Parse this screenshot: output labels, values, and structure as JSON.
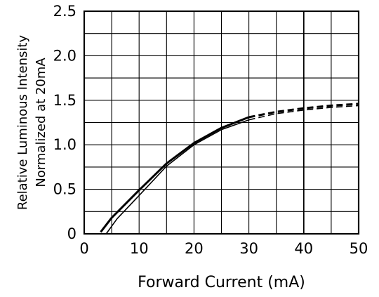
{
  "chart_data": {
    "type": "line",
    "xlabel": "Forward Current (mA)",
    "ylabel": [
      "Relative Luminous Intensity",
      "Normalized at 20mA"
    ],
    "xlim": [
      0,
      50
    ],
    "ylim": [
      0,
      2.5
    ],
    "x_ticks": [
      0,
      10,
      20,
      30,
      40,
      50
    ],
    "y_ticks": [
      0,
      0.5,
      1.0,
      1.5,
      2.0,
      2.5
    ],
    "x_tick_labels": [
      "0",
      "10",
      "20",
      "30",
      "40",
      "50"
    ],
    "y_tick_labels": [
      "0",
      "0.5",
      "1.0",
      "1.5",
      "2.0",
      "2.5"
    ],
    "grid": true,
    "x_minor_grid_step": 5,
    "y_minor_grid_step": 0.25,
    "series": [
      {
        "style": "solid-then-dashed",
        "dash_start_x": 30,
        "points": [
          [
            3,
            0.02
          ],
          [
            5,
            0.18
          ],
          [
            10,
            0.49
          ],
          [
            15,
            0.79
          ],
          [
            20,
            1.02
          ],
          [
            25,
            1.19
          ],
          [
            30,
            1.31
          ],
          [
            35,
            1.37
          ],
          [
            40,
            1.41
          ],
          [
            45,
            1.44
          ],
          [
            50,
            1.46
          ]
        ]
      },
      {
        "style": "solid-then-dashed",
        "dash_start_x": 30,
        "points": [
          [
            4,
            0.0
          ],
          [
            6,
            0.17
          ],
          [
            10,
            0.43
          ],
          [
            15,
            0.76
          ],
          [
            20,
            1.0
          ],
          [
            25,
            1.17
          ],
          [
            30,
            1.28
          ],
          [
            35,
            1.35
          ],
          [
            40,
            1.39
          ],
          [
            45,
            1.42
          ],
          [
            50,
            1.44
          ]
        ]
      }
    ]
  }
}
